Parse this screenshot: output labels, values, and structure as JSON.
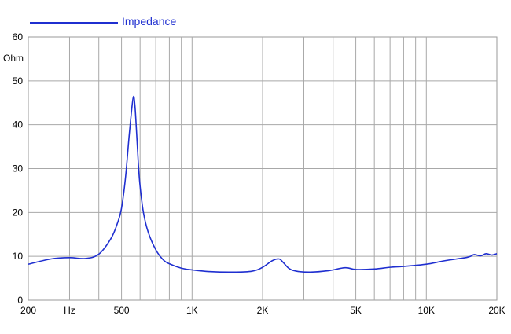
{
  "chart_data": {
    "type": "line",
    "title": "",
    "xlabel": "Hz",
    "ylabel": "Ohm",
    "x_scale": "log",
    "xlim": [
      200,
      20000
    ],
    "ylim": [
      0,
      60
    ],
    "grid": true,
    "legend_placement": "top-left",
    "y_ticks": [
      "0",
      "10",
      "20",
      "30",
      "40",
      "50",
      "60"
    ],
    "x_ticks": [
      {
        "value": 200,
        "label": "200"
      },
      {
        "value": 300,
        "label": "Hz"
      },
      {
        "value": 500,
        "label": "500"
      },
      {
        "value": 1000,
        "label": "1K"
      },
      {
        "value": 2000,
        "label": "2K"
      },
      {
        "value": 5000,
        "label": "5K"
      },
      {
        "value": 10000,
        "label": "10K"
      },
      {
        "value": 20000,
        "label": "20K"
      }
    ],
    "series": [
      {
        "name": "Impedance",
        "color": "#1f2fd0",
        "x": [
          200,
          250,
          300,
          350,
          400,
          450,
          480,
          500,
          520,
          540,
          560,
          570,
          580,
          590,
          600,
          620,
          650,
          700,
          750,
          800,
          900,
          1000,
          1200,
          1500,
          1800,
          2000,
          2200,
          2350,
          2450,
          2600,
          2800,
          3200,
          3800,
          4500,
          5000,
          6000,
          7000,
          8000,
          10000,
          12000,
          15000,
          16000,
          17000,
          18000,
          19000,
          20000
        ],
        "y": [
          8.2,
          9.4,
          9.7,
          9.5,
          10.5,
          14.0,
          17.5,
          21.0,
          28.0,
          38.0,
          46.0,
          44.5,
          38.0,
          31.0,
          26.0,
          20.0,
          15.5,
          11.5,
          9.3,
          8.3,
          7.3,
          6.9,
          6.5,
          6.4,
          6.6,
          7.5,
          9.0,
          9.4,
          8.6,
          7.2,
          6.6,
          6.4,
          6.7,
          7.4,
          7.0,
          7.1,
          7.5,
          7.7,
          8.2,
          9.0,
          9.8,
          10.4,
          10.1,
          10.6,
          10.3,
          10.6
        ]
      }
    ]
  }
}
